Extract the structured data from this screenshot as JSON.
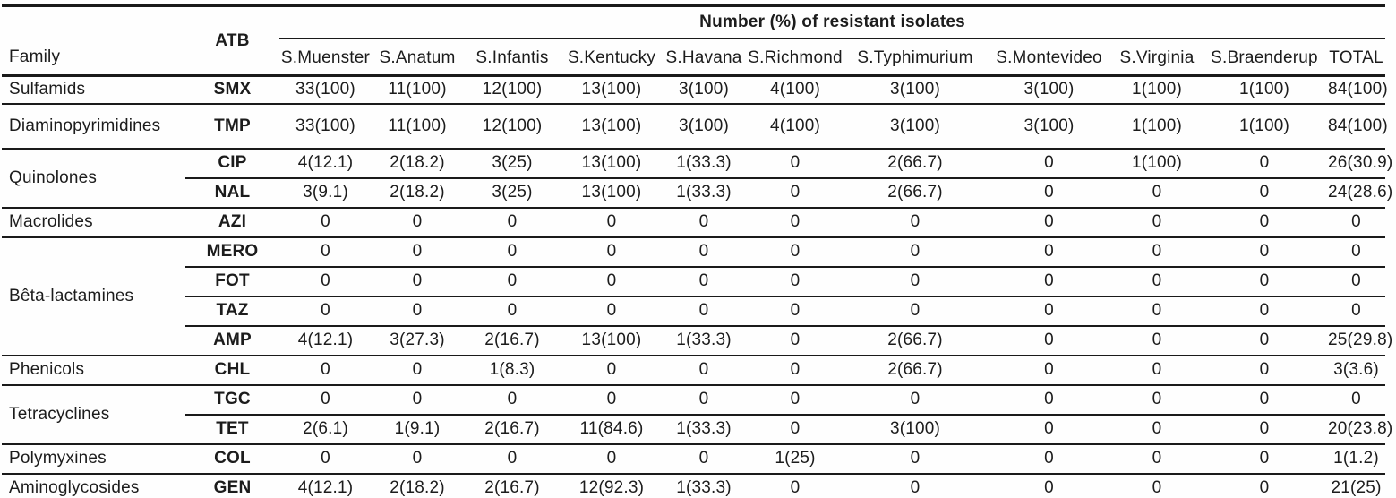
{
  "table": {
    "span_header": "Number (%) of resistant isolates",
    "family_header": "Family",
    "atb_header": "ATB",
    "serotype_headers": [
      "S.Muenster",
      "S.Anatum",
      "S.Infantis",
      "S.Kentucky",
      "S.Havana",
      "S.Richmond",
      "S.Typhimurium",
      "S.Montevideo",
      "S.Virginia",
      "S.Braenderup",
      "TOTAL"
    ],
    "groups": [
      {
        "family": "Sulfamids",
        "rows": [
          {
            "atb": "SMX",
            "values": [
              "33(100)",
              "11(100)",
              "12(100)",
              "13(100)",
              "3(100)",
              "4(100)",
              "3(100)",
              "3(100)",
              "1(100)",
              "1(100)",
              "84(100)"
            ]
          }
        ]
      },
      {
        "family": "Diaminopyrimidines",
        "rows": [
          {
            "atb": "TMP",
            "values": [
              "33(100)",
              "11(100)",
              "12(100)",
              "13(100)",
              "3(100)",
              "4(100)",
              "3(100)",
              "3(100)",
              "1(100)",
              "1(100)",
              "84(100)"
            ]
          }
        ]
      },
      {
        "family": "Quinolones",
        "rows": [
          {
            "atb": "CIP",
            "values": [
              "4(12.1)",
              "2(18.2)",
              "3(25)",
              "13(100)",
              "1(33.3)",
              "0",
              "2(66.7)",
              "0",
              "1(100)",
              "0",
              "26(30.9)"
            ]
          },
          {
            "atb": "NAL",
            "values": [
              "3(9.1)",
              "2(18.2)",
              "3(25)",
              "13(100)",
              "1(33.3)",
              "0",
              "2(66.7)",
              "0",
              "0",
              "0",
              "24(28.6)"
            ]
          }
        ]
      },
      {
        "family": "Macrolides",
        "rows": [
          {
            "atb": "AZI",
            "values": [
              "0",
              "0",
              "0",
              "0",
              "0",
              "0",
              "0",
              "0",
              "0",
              "0",
              "0"
            ]
          }
        ]
      },
      {
        "family": "Bêta-lactamines",
        "rows": [
          {
            "atb": "MERO",
            "values": [
              "0",
              "0",
              "0",
              "0",
              "0",
              "0",
              "0",
              "0",
              "0",
              "0",
              "0"
            ]
          },
          {
            "atb": "FOT",
            "values": [
              "0",
              "0",
              "0",
              "0",
              "0",
              "0",
              "0",
              "0",
              "0",
              "0",
              "0"
            ]
          },
          {
            "atb": "TAZ",
            "values": [
              "0",
              "0",
              "0",
              "0",
              "0",
              "0",
              "0",
              "0",
              "0",
              "0",
              "0"
            ]
          },
          {
            "atb": "AMP",
            "values": [
              "4(12.1)",
              "3(27.3)",
              "2(16.7)",
              "13(100)",
              "1(33.3)",
              "0",
              "2(66.7)",
              "0",
              "0",
              "0",
              "25(29.8)"
            ]
          }
        ]
      },
      {
        "family": "Phenicols",
        "rows": [
          {
            "atb": "CHL",
            "values": [
              "0",
              "0",
              "1(8.3)",
              "0",
              "0",
              "0",
              "2(66.7)",
              "0",
              "0",
              "0",
              "3(3.6)"
            ]
          }
        ]
      },
      {
        "family": "Tetracyclines",
        "rows": [
          {
            "atb": "TGC",
            "values": [
              "0",
              "0",
              "0",
              "0",
              "0",
              "0",
              "0",
              "0",
              "0",
              "0",
              "0"
            ]
          },
          {
            "atb": "TET",
            "values": [
              "2(6.1)",
              "1(9.1)",
              "2(16.7)",
              "11(84.6)",
              "1(33.3)",
              "0",
              "3(100)",
              "0",
              "0",
              "0",
              "20(23.8)"
            ]
          }
        ]
      },
      {
        "family": "Polymyxines",
        "rows": [
          {
            "atb": "COL",
            "values": [
              "0",
              "0",
              "0",
              "0",
              "0",
              "1(25)",
              "0",
              "0",
              "0",
              "0",
              "1(1.2)"
            ]
          }
        ]
      },
      {
        "family": "Aminoglycosides",
        "rows": [
          {
            "atb": "GEN",
            "values": [
              "4(12.1)",
              "2(18.2)",
              "2(16.7)",
              "12(92.3)",
              "1(33.3)",
              "0",
              "0",
              "0",
              "0",
              "0",
              "21(25)"
            ]
          }
        ]
      }
    ]
  },
  "colors": {
    "text": "#1c1c1c",
    "line": "#1a1a1a",
    "background": "#ffffff"
  }
}
